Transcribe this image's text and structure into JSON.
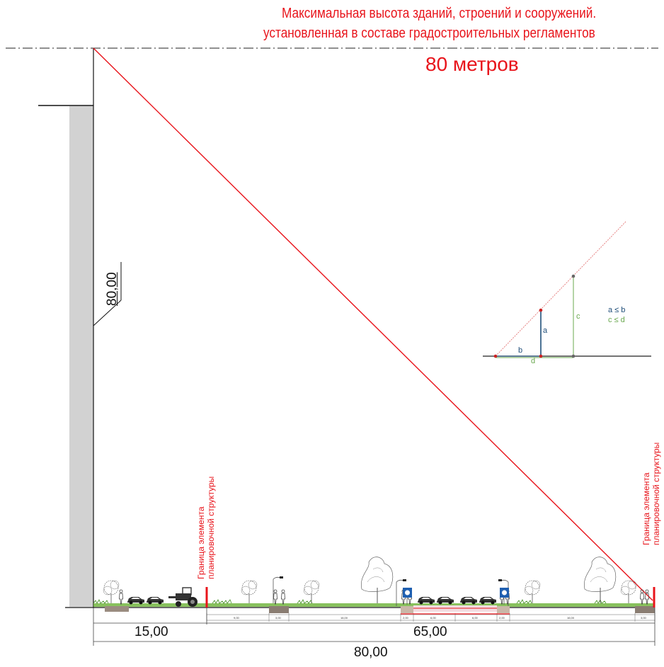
{
  "title": {
    "line1": "Максимальная высота зданий, строений и сооружений.",
    "line2": "установленная в составе градостроительных регламентов",
    "line3": "80 метров"
  },
  "building_height_label": "80,00",
  "boundary_label": {
    "line1": "Граница элемента",
    "line2": "планировочной структуры"
  },
  "dimensions": {
    "left_segment": "15,00",
    "right_segment": "65,00",
    "total": "80,00"
  },
  "street_section": {
    "segments": [
      "9,00",
      "3,00",
      "16,00",
      "2,00",
      "6,00",
      "6,00",
      "2,00",
      "16,00",
      "3,00"
    ]
  },
  "inset": {
    "labels": {
      "a": "a",
      "b": "b",
      "c": "c",
      "d": "d"
    },
    "rule1": "a ≤ b",
    "rule2": "c ≤ d"
  },
  "colors": {
    "red": "#e8141b",
    "inset_blue": "#1f4e79",
    "inset_green": "#6aa84f",
    "grass": "#5fa52c",
    "building": "#d2d2d2"
  },
  "icons": [
    "tree-icon",
    "pedestrian-icon",
    "car-icon",
    "tractor-icon",
    "street-lamp-icon",
    "parking-sign-icon"
  ]
}
